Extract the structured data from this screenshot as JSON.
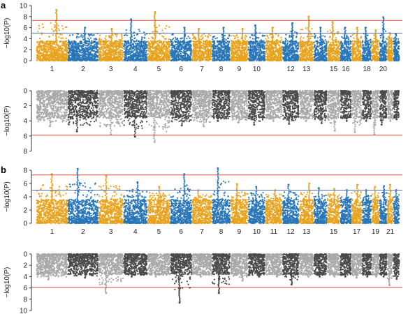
{
  "figure": {
    "panel_labels": [
      "a",
      "b"
    ],
    "y_axis_label": "−log10(P)",
    "colors": {
      "orange": "#e8a21c",
      "blue": "#2876b8",
      "dark_gray": "#4a4a4a",
      "light_gray": "#a8a8a8",
      "red_line": "#d9453f",
      "blue_line": "#5b6fae"
    }
  },
  "chart_data": [
    {
      "id": "a-top",
      "panel": "a",
      "type": "scatter",
      "style": "manhattan",
      "orientation": "up",
      "xlabel": "",
      "ylabel": "−log10(P)",
      "ylim": [
        0,
        10
      ],
      "yticks": [
        0,
        2,
        4,
        6,
        8,
        10
      ],
      "grid": false,
      "palette": [
        "#e8a21c",
        "#2876b8"
      ],
      "reference_lines": [
        {
          "y": 7.3,
          "color": "#d9453f"
        },
        {
          "y": 5.0,
          "color": "#5b6fae"
        }
      ],
      "chromosomes": [
        {
          "chr": "1",
          "label": "1",
          "peak": 9.2
        },
        {
          "chr": "2",
          "label": "2",
          "peak": 6.0
        },
        {
          "chr": "3",
          "label": "3",
          "peak": 5.8
        },
        {
          "chr": "4",
          "label": "4",
          "peak": 7.5
        },
        {
          "chr": "5",
          "label": "5",
          "peak": 8.8
        },
        {
          "chr": "6",
          "label": "6",
          "peak": 6.0
        },
        {
          "chr": "7",
          "label": "7",
          "peak": 5.8
        },
        {
          "chr": "8",
          "label": "8",
          "peak": 6.0
        },
        {
          "chr": "9",
          "label": "9",
          "peak": 5.8
        },
        {
          "chr": "10",
          "label": "10",
          "peak": 6.4
        },
        {
          "chr": "11",
          "label": "",
          "peak": 6.0
        },
        {
          "chr": "12",
          "label": "12",
          "peak": 6.8
        },
        {
          "chr": "13",
          "label": "13",
          "peak": 8.0
        },
        {
          "chr": "14",
          "label": "",
          "peak": 6.0
        },
        {
          "chr": "15",
          "label": "15",
          "peak": 7.0
        },
        {
          "chr": "16",
          "label": "16",
          "peak": 6.0
        },
        {
          "chr": "17",
          "label": "",
          "peak": 6.0
        },
        {
          "chr": "18",
          "label": "18",
          "peak": 6.0
        },
        {
          "chr": "19",
          "label": "",
          "peak": 5.5
        },
        {
          "chr": "20",
          "label": "20",
          "peak": 7.9
        },
        {
          "chr": "21",
          "label": "",
          "peak": 5.0
        },
        {
          "chr": "22",
          "label": "",
          "peak": 4.8
        }
      ]
    },
    {
      "id": "a-bottom",
      "panel": "a",
      "type": "scatter",
      "style": "manhattan",
      "orientation": "down",
      "xlabel": "",
      "ylabel": "−log10(P)",
      "ylim": [
        0,
        8
      ],
      "yticks": [
        0,
        2,
        4,
        6,
        8
      ],
      "grid": false,
      "palette": [
        "#a8a8a8",
        "#4a4a4a"
      ],
      "reference_lines": [
        {
          "y": 5.9,
          "color": "#d9453f"
        }
      ],
      "chromosomes": [
        {
          "chr": "1",
          "peak": 4.7
        },
        {
          "chr": "2",
          "peak": 5.4
        },
        {
          "chr": "3",
          "peak": 5.8
        },
        {
          "chr": "4",
          "peak": 6.1
        },
        {
          "chr": "5",
          "peak": 6.8
        },
        {
          "chr": "6",
          "peak": 4.6
        },
        {
          "chr": "7",
          "peak": 4.7
        },
        {
          "chr": "8",
          "peak": 4.0
        },
        {
          "chr": "9",
          "peak": 4.2
        },
        {
          "chr": "10",
          "peak": 4.5
        },
        {
          "chr": "11",
          "peak": 4.0
        },
        {
          "chr": "12",
          "peak": 4.4
        },
        {
          "chr": "13",
          "peak": 4.0
        },
        {
          "chr": "14",
          "peak": 4.3
        },
        {
          "chr": "15",
          "peak": 5.3
        },
        {
          "chr": "16",
          "peak": 4.0
        },
        {
          "chr": "17",
          "peak": 5.5
        },
        {
          "chr": "18",
          "peak": 4.0
        },
        {
          "chr": "19",
          "peak": 5.8
        },
        {
          "chr": "20",
          "peak": 4.5
        },
        {
          "chr": "21",
          "peak": 4.0
        },
        {
          "chr": "22",
          "peak": 3.8
        }
      ]
    },
    {
      "id": "b-top",
      "panel": "b",
      "type": "scatter",
      "style": "manhattan",
      "orientation": "up",
      "xlabel": "",
      "ylabel": "−log10(P)",
      "ylim": [
        0,
        8
      ],
      "yticks": [
        0,
        2,
        4,
        6,
        8
      ],
      "grid": false,
      "palette": [
        "#e8a21c",
        "#2876b8"
      ],
      "reference_lines": [
        {
          "y": 7.3,
          "color": "#d9453f"
        },
        {
          "y": 5.0,
          "color": "#5b6fae"
        }
      ],
      "chromosomes": [
        {
          "chr": "1",
          "label": "1",
          "peak": 7.4
        },
        {
          "chr": "2",
          "label": "2",
          "peak": 8.2
        },
        {
          "chr": "3",
          "label": "3",
          "peak": 7.2
        },
        {
          "chr": "4",
          "label": "4",
          "peak": 6.2
        },
        {
          "chr": "5",
          "label": "5",
          "peak": 5.5
        },
        {
          "chr": "6",
          "label": "6",
          "peak": 7.4
        },
        {
          "chr": "7",
          "label": "7",
          "peak": 5.0
        },
        {
          "chr": "8",
          "label": "8",
          "peak": 8.3
        },
        {
          "chr": "9",
          "label": "9",
          "peak": 5.9
        },
        {
          "chr": "10",
          "label": "10",
          "peak": 5.5
        },
        {
          "chr": "11",
          "label": "11",
          "peak": 5.0
        },
        {
          "chr": "12",
          "label": "12",
          "peak": 5.8
        },
        {
          "chr": "13",
          "label": "13",
          "peak": 6.0
        },
        {
          "chr": "14",
          "label": "",
          "peak": 5.3
        },
        {
          "chr": "15",
          "label": "15",
          "peak": 5.2
        },
        {
          "chr": "16",
          "label": "",
          "peak": 5.0
        },
        {
          "chr": "17",
          "label": "17",
          "peak": 5.8
        },
        {
          "chr": "18",
          "label": "",
          "peak": 5.0
        },
        {
          "chr": "19",
          "label": "19",
          "peak": 5.5
        },
        {
          "chr": "20",
          "label": "",
          "peak": 5.6
        },
        {
          "chr": "21",
          "label": "21",
          "peak": 5.8
        },
        {
          "chr": "22",
          "label": "",
          "peak": 5.0
        }
      ]
    },
    {
      "id": "b-bottom",
      "panel": "b",
      "type": "scatter",
      "style": "manhattan",
      "orientation": "down",
      "xlabel": "",
      "ylabel": "−log10(P)",
      "ylim": [
        0,
        10
      ],
      "yticks": [
        0,
        2,
        4,
        6,
        8,
        10
      ],
      "grid": false,
      "palette": [
        "#a8a8a8",
        "#4a4a4a"
      ],
      "reference_lines": [
        {
          "y": 5.9,
          "color": "#d9453f"
        }
      ],
      "chromosomes": [
        {
          "chr": "1",
          "peak": 4.5
        },
        {
          "chr": "2",
          "peak": 4.2
        },
        {
          "chr": "3",
          "peak": 6.9
        },
        {
          "chr": "4",
          "peak": 4.0
        },
        {
          "chr": "5",
          "peak": 4.0
        },
        {
          "chr": "6",
          "peak": 8.6
        },
        {
          "chr": "7",
          "peak": 4.0
        },
        {
          "chr": "8",
          "peak": 6.9
        },
        {
          "chr": "9",
          "peak": 4.7
        },
        {
          "chr": "10",
          "peak": 4.0
        },
        {
          "chr": "11",
          "peak": 4.0
        },
        {
          "chr": "12",
          "peak": 5.4
        },
        {
          "chr": "13",
          "peak": 4.0
        },
        {
          "chr": "14",
          "peak": 4.0
        },
        {
          "chr": "15",
          "peak": 4.0
        },
        {
          "chr": "16",
          "peak": 4.0
        },
        {
          "chr": "17",
          "peak": 4.2
        },
        {
          "chr": "18",
          "peak": 4.0
        },
        {
          "chr": "19",
          "peak": 4.0
        },
        {
          "chr": "20",
          "peak": 4.0
        },
        {
          "chr": "21",
          "peak": 5.5
        },
        {
          "chr": "22",
          "peak": 4.4
        }
      ]
    }
  ]
}
